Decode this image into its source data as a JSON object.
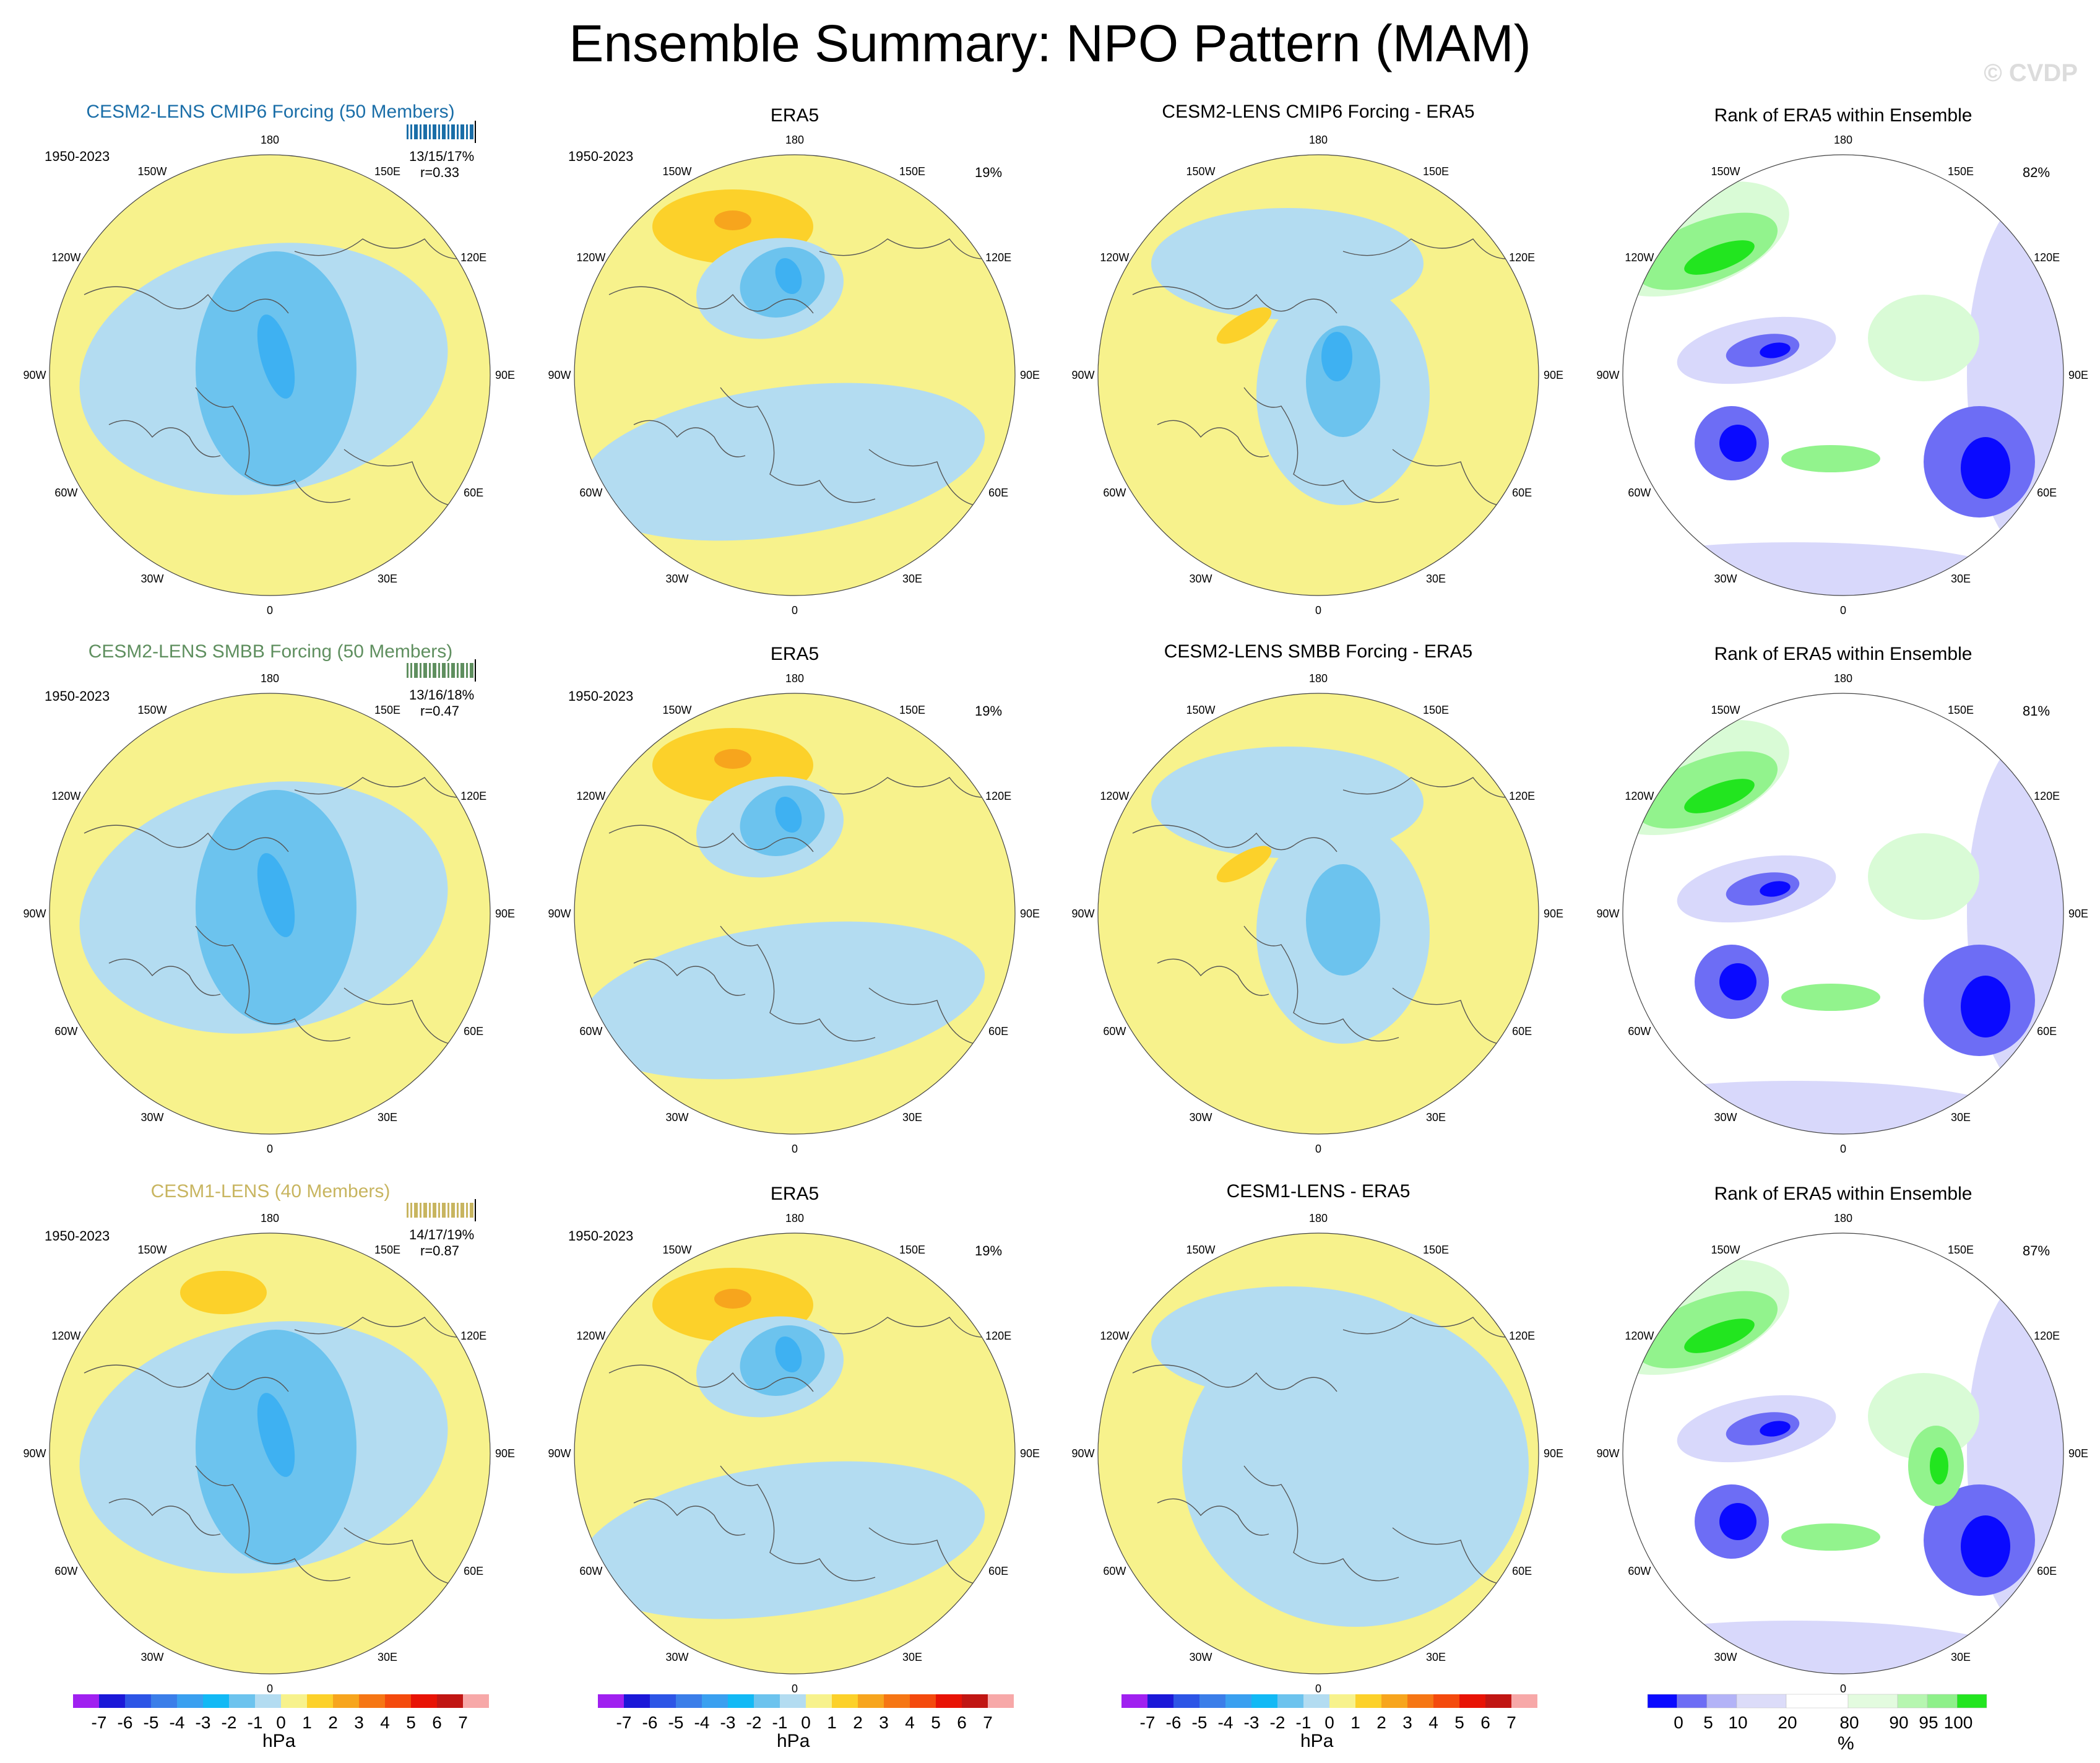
{
  "title": "Ensemble Summary: NPO Pattern (MAM)",
  "watermark": "© CVDP",
  "colors": {
    "model_row1": "#1a6ea8",
    "model_row2": "#5f8f5f",
    "model_row3": "#c8b560",
    "pos1": "#f7f28c",
    "pos2": "#fcd12a",
    "pos3": "#f7a51d",
    "neg1": "#b3dcf1",
    "neg2": "#6cc3ee",
    "neg3": "#3eb1f2",
    "rank_low3": "#0a0aff",
    "rank_low2": "#6d6df5",
    "rank_low1": "#d8d8fb",
    "rank_high1": "#d9fbd6",
    "rank_high2": "#92f38d",
    "rank_high3": "#22e51f"
  },
  "rows": [
    {
      "model_title": "CESM2-LENS CMIP6 Forcing (50 Members)",
      "model_period": "1950-2023",
      "model_stats": "13/15/17%",
      "model_r": "r=0.33",
      "obs_title": "ERA5",
      "obs_period": "1950-2023",
      "obs_pct": "19%",
      "diff_title": "CESM2-LENS CMIP6 Forcing - ERA5",
      "rank_title": "Rank of ERA5 within Ensemble",
      "rank_pct": "82%"
    },
    {
      "model_title": "CESM2-LENS SMBB Forcing (50 Members)",
      "model_period": "1950-2023",
      "model_stats": "13/16/18%",
      "model_r": "r=0.47",
      "obs_title": "ERA5",
      "obs_period": "1950-2023",
      "obs_pct": "19%",
      "diff_title": "CESM2-LENS SMBB Forcing - ERA5",
      "rank_title": "Rank of ERA5 within Ensemble",
      "rank_pct": "81%"
    },
    {
      "model_title": "CESM1-LENS (40 Members)",
      "model_period": "1950-2023",
      "model_stats": "14/17/19%",
      "model_r": "r=0.87",
      "obs_title": "ERA5",
      "obs_period": "1950-2023",
      "obs_pct": "19%",
      "diff_title": "CESM1-LENS - ERA5",
      "rank_title": "Rank of ERA5 within Ensemble",
      "rank_pct": "87%"
    }
  ],
  "longitude_labels": [
    "180",
    "150E",
    "120E",
    "90E",
    "60E",
    "30E",
    "0",
    "30W",
    "60W",
    "90W",
    "120W",
    "150W"
  ],
  "chart_data": [
    {
      "type": "heatmap",
      "description_units": "hPa",
      "colorbar_label": "hPa",
      "colorbar_ticks": [
        "-7",
        "-6",
        "-5",
        "-4",
        "-3",
        "-2",
        "-1",
        "0",
        "1",
        "2",
        "3",
        "4",
        "5",
        "6",
        "7"
      ],
      "colorbar_colors": [
        "#a020f0",
        "#1b18d8",
        "#2d55e6",
        "#3b7ee9",
        "#3aa0f0",
        "#12b9f5",
        "#6cc3ee",
        "#b3dcf1",
        "#f7f28c",
        "#fcd12a",
        "#f7a51d",
        "#f67614",
        "#f44a0d",
        "#e81305",
        "#c11613",
        "#f7a8a8"
      ]
    },
    {
      "type": "heatmap",
      "colorbar_label": "%",
      "colorbar_ticks": [
        "0",
        "5",
        "10",
        "20",
        "80",
        "90",
        "95",
        "100"
      ],
      "colorbar_bounds": [
        0,
        5,
        10,
        20,
        80,
        90,
        95,
        100
      ],
      "colorbar_colors": [
        "#0a0aff",
        "#6d6df5",
        "#b3b3f7",
        "#dcdcf9",
        "#ffffff",
        "#e3fbdf",
        "#b6f6b0",
        "#8ef08a",
        "#22e51f"
      ]
    }
  ]
}
